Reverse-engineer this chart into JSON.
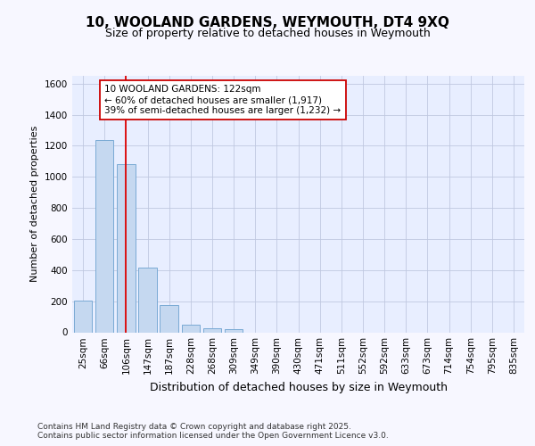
{
  "title": "10, WOOLAND GARDENS, WEYMOUTH, DT4 9XQ",
  "subtitle": "Size of property relative to detached houses in Weymouth",
  "xlabel": "Distribution of detached houses by size in Weymouth",
  "ylabel": "Number of detached properties",
  "categories": [
    "25sqm",
    "66sqm",
    "106sqm",
    "147sqm",
    "187sqm",
    "228sqm",
    "268sqm",
    "309sqm",
    "349sqm",
    "390sqm",
    "430sqm",
    "471sqm",
    "511sqm",
    "552sqm",
    "592sqm",
    "633sqm",
    "673sqm",
    "714sqm",
    "754sqm",
    "795sqm",
    "835sqm"
  ],
  "values": [
    205,
    1235,
    1080,
    415,
    175,
    50,
    25,
    20,
    0,
    0,
    0,
    0,
    0,
    0,
    0,
    0,
    0,
    0,
    0,
    0,
    0
  ],
  "bar_color": "#c5d8f0",
  "bar_edge_color": "#7aaad4",
  "vline_x_index": 2,
  "vline_color": "#dd0000",
  "ylim": [
    0,
    1650
  ],
  "yticks": [
    0,
    200,
    400,
    600,
    800,
    1000,
    1200,
    1400,
    1600
  ],
  "annotation_text": "10 WOOLAND GARDENS: 122sqm\n← 60% of detached houses are smaller (1,917)\n39% of semi-detached houses are larger (1,232) →",
  "annotation_box_color": "#ffffff",
  "annotation_box_edge": "#cc0000",
  "footer": "Contains HM Land Registry data © Crown copyright and database right 2025.\nContains public sector information licensed under the Open Government Licence v3.0.",
  "bg_color": "#f7f7ff",
  "plot_bg_color": "#e8eeff",
  "grid_color": "#c0c8e0",
  "title_fontsize": 11,
  "subtitle_fontsize": 9,
  "ylabel_fontsize": 8,
  "xlabel_fontsize": 9,
  "tick_fontsize": 7.5,
  "footer_fontsize": 6.5
}
